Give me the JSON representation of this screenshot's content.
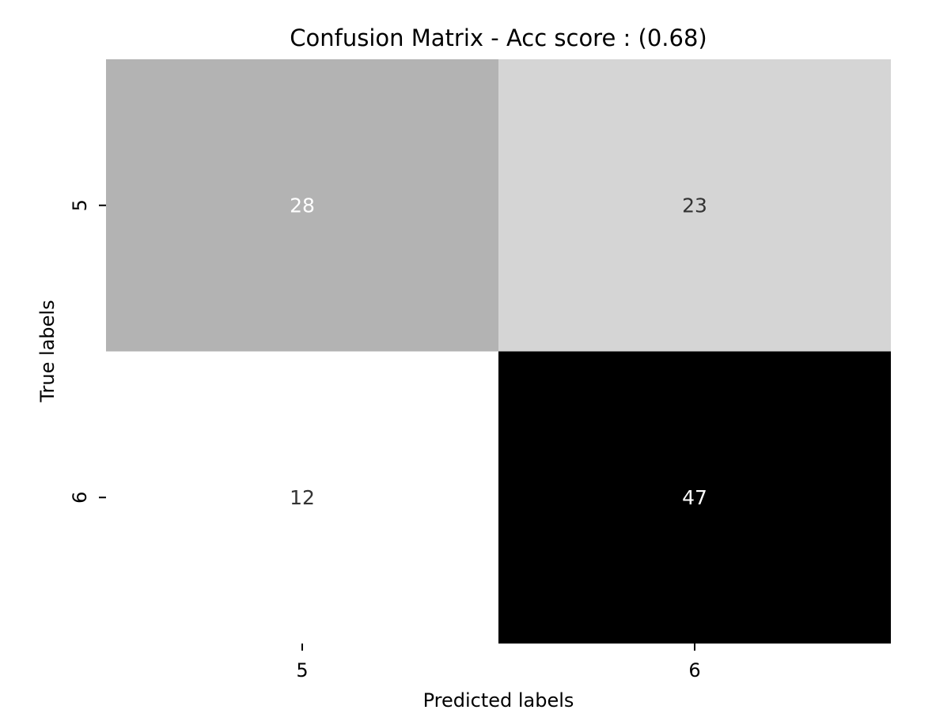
{
  "chart_data": {
    "type": "heatmap",
    "title": "Confusion Matrix - Acc score : (0.68)",
    "xlabel": "Predicted labels",
    "ylabel": "True labels",
    "x_categories": [
      "5",
      "6"
    ],
    "y_categories": [
      "5",
      "6"
    ],
    "values": [
      [
        28,
        23
      ],
      [
        12,
        47
      ]
    ],
    "colormap": "Greys",
    "value_range": [
      12,
      47
    ],
    "colorbar": false,
    "grid": false,
    "cell_colors": [
      [
        "#b3b3b3",
        "#d5d5d5"
      ],
      [
        "#ffffff",
        "#000000"
      ]
    ],
    "annotation_colors": [
      [
        "#ffffff",
        "#333333"
      ],
      [
        "#333333",
        "#ffffff"
      ]
    ]
  }
}
